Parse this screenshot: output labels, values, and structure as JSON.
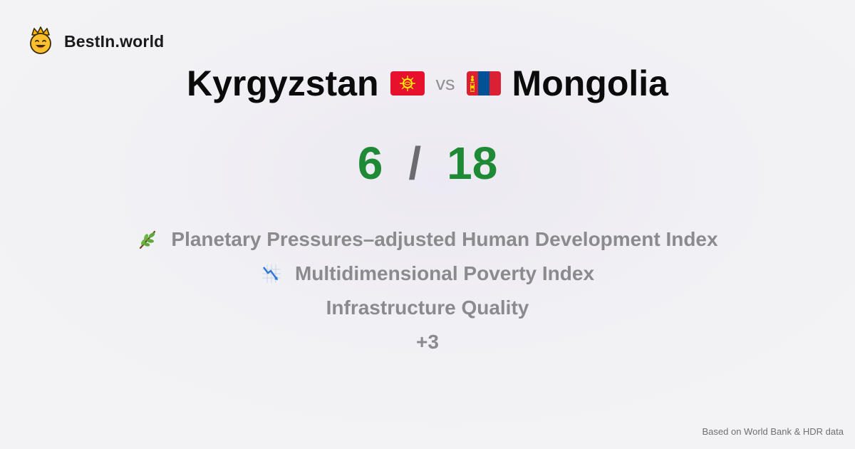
{
  "brand": {
    "name": "BestIn.world",
    "logo_icon": "crown-smiley-icon"
  },
  "comparison": {
    "country_a": {
      "name": "Kyrgyzstan",
      "flag_icon": "kyrgyzstan-flag-icon"
    },
    "vs_label": "vs",
    "country_b": {
      "name": "Mongolia",
      "flag_icon": "mongolia-flag-icon"
    }
  },
  "score": {
    "a": "6",
    "separator": "/",
    "b": "18"
  },
  "metrics": [
    {
      "label": "Planetary Pressures–adjusted Human Development Index",
      "icon": "herb-icon"
    },
    {
      "label": "Multidimensional Poverty Index",
      "icon": "chart-decreasing-icon"
    },
    {
      "label": "Infrastructure Quality",
      "icon": ""
    }
  ],
  "more_label": "+3",
  "footer": "Based on World Bank & HDR data",
  "colors": {
    "score": "#1e8a36",
    "muted": "#8a8a8f"
  }
}
